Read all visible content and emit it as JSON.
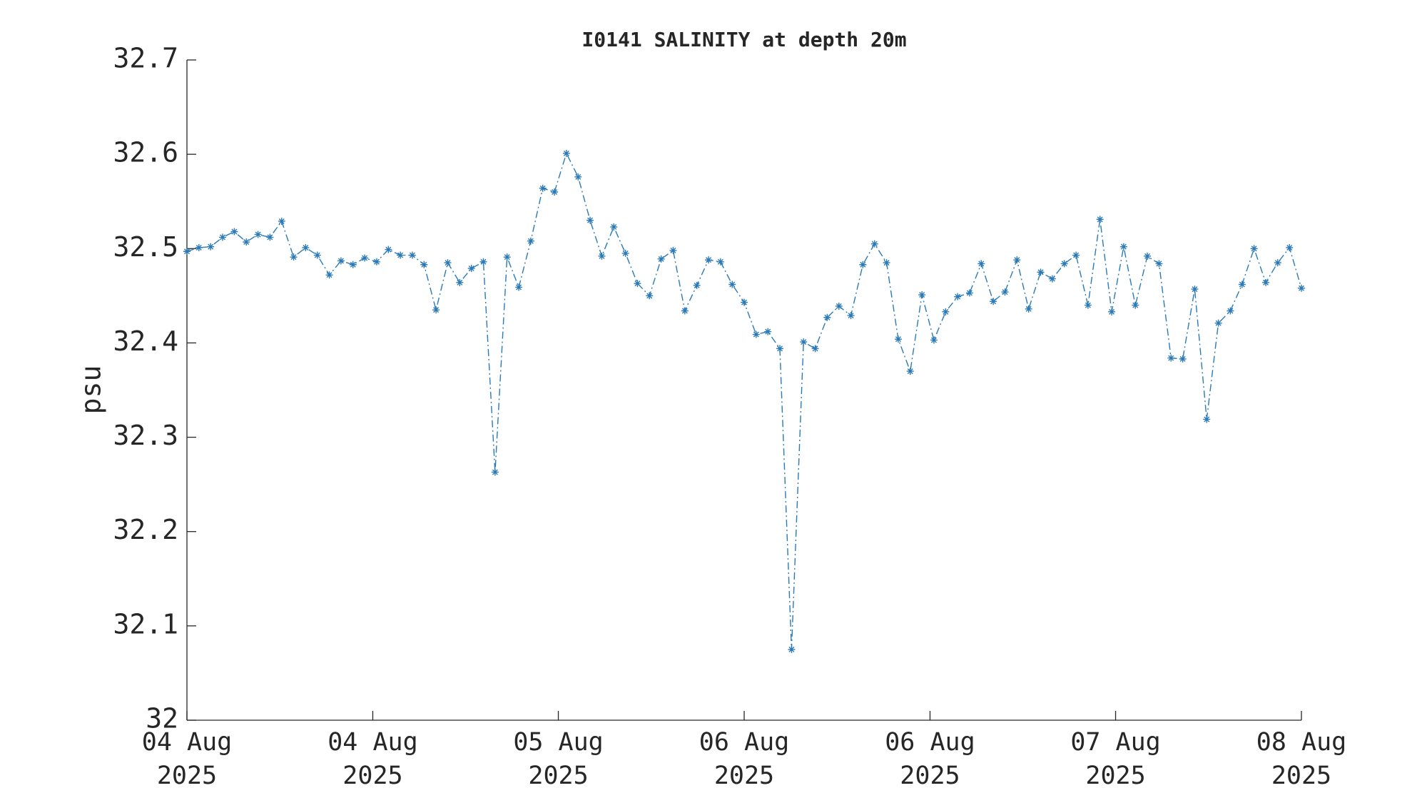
{
  "chart_data": {
    "type": "line",
    "title": "I0141 SALINITY at depth 20m",
    "y_label": "psu",
    "color": "#2a7ab8",
    "x": [
      4.0,
      4.043,
      4.085,
      4.128,
      4.17,
      4.213,
      4.255,
      4.298,
      4.34,
      4.383,
      4.426,
      4.468,
      4.511,
      4.553,
      4.596,
      4.638,
      4.681,
      4.723,
      4.766,
      4.809,
      4.851,
      4.894,
      4.936,
      4.979,
      5.021,
      5.064,
      5.106,
      5.149,
      5.191,
      5.234,
      5.277,
      5.319,
      5.362,
      5.404,
      5.447,
      5.489,
      5.532,
      5.574,
      5.617,
      5.66,
      5.702,
      5.745,
      5.787,
      5.83,
      5.872,
      5.915,
      5.957,
      6.0,
      6.043,
      6.085,
      6.128,
      6.17,
      6.213,
      6.255,
      6.298,
      6.34,
      6.383,
      6.426,
      6.468,
      6.511,
      6.553,
      6.596,
      6.638,
      6.681,
      6.723,
      6.766,
      6.809,
      6.851,
      6.894,
      6.936,
      6.979,
      7.021,
      7.064,
      7.106,
      7.149,
      7.191,
      7.234,
      7.277,
      7.319,
      7.362,
      7.404,
      7.447,
      7.489,
      7.532,
      7.574,
      7.617,
      7.66,
      7.702,
      7.745,
      7.787,
      7.83,
      7.872,
      7.915,
      7.957,
      8.0
    ],
    "values": [
      32.497,
      32.501,
      32.502,
      32.512,
      32.518,
      32.507,
      32.515,
      32.512,
      32.529,
      32.491,
      32.501,
      32.493,
      32.472,
      32.487,
      32.483,
      32.49,
      32.486,
      32.499,
      32.493,
      32.493,
      32.483,
      32.435,
      32.485,
      32.464,
      32.479,
      32.486,
      32.263,
      32.491,
      32.459,
      32.508,
      32.564,
      32.56,
      32.601,
      32.576,
      32.53,
      32.492,
      32.523,
      32.495,
      32.463,
      32.45,
      32.489,
      32.498,
      32.434,
      32.461,
      32.488,
      32.486,
      32.462,
      32.443,
      32.409,
      32.412,
      32.394,
      32.075,
      32.401,
      32.394,
      32.427,
      32.439,
      32.429,
      32.483,
      32.505,
      32.485,
      32.404,
      32.37,
      32.451,
      32.403,
      32.433,
      32.449,
      32.453,
      32.484,
      32.444,
      32.454,
      32.488,
      32.436,
      32.475,
      32.468,
      32.484,
      32.493,
      32.44,
      32.531,
      32.433,
      32.502,
      32.44,
      32.492,
      32.484,
      32.384,
      32.383,
      32.457,
      32.319,
      32.421,
      32.434,
      32.462,
      32.5,
      32.464,
      32.485,
      32.501,
      32.458
    ],
    "xlim": [
      4,
      8
    ],
    "xticks": [
      {
        "value": 4,
        "label": "04 Aug\n2025"
      },
      {
        "value": 4.667,
        "label": "04 Aug\n2025"
      },
      {
        "value": 5.333,
        "label": "05 Aug\n2025"
      },
      {
        "value": 6,
        "label": "06 Aug\n2025"
      },
      {
        "value": 6.667,
        "label": "06 Aug\n2025"
      },
      {
        "value": 7.333,
        "label": "07 Aug\n2025"
      },
      {
        "value": 8,
        "label": "08 Aug\n2025"
      }
    ],
    "ylim": [
      32,
      32.7
    ],
    "yticks": [
      32,
      32.1,
      32.2,
      32.3,
      32.4,
      32.5,
      32.6,
      32.7
    ]
  }
}
